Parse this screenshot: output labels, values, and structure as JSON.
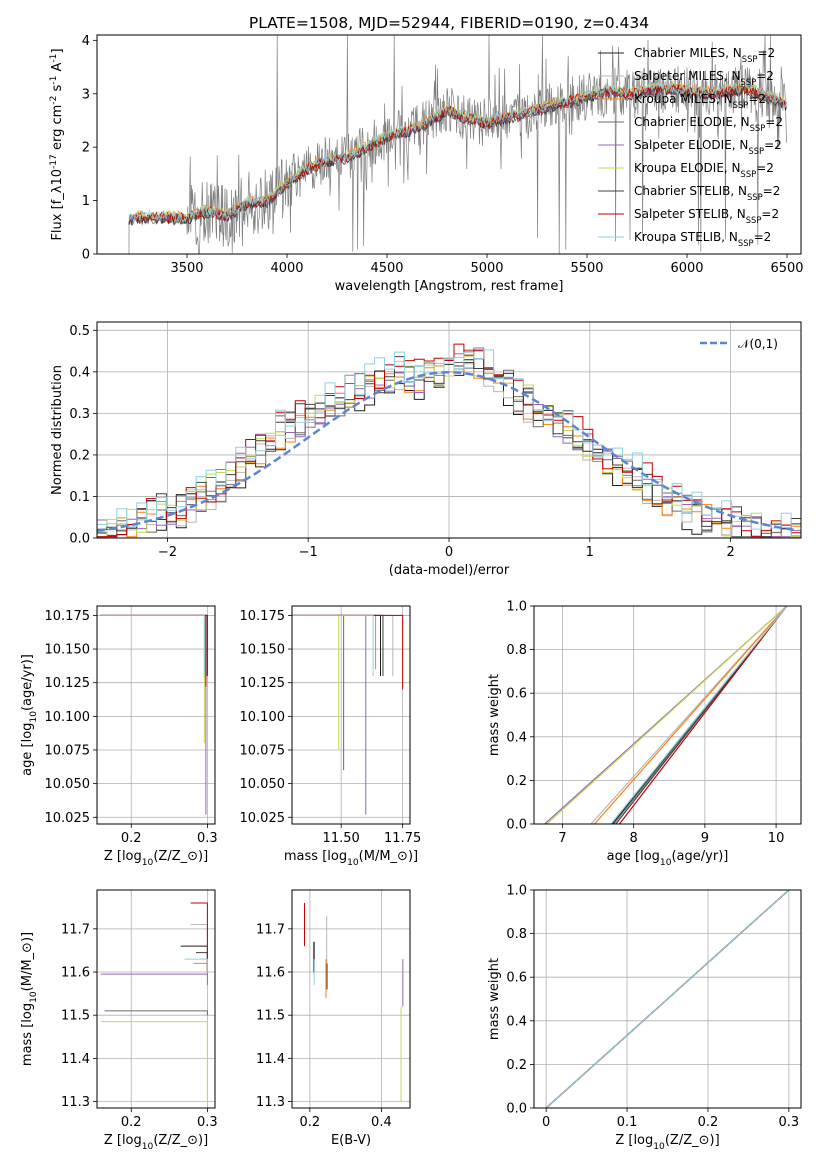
{
  "figure_title": "PLATE=1508, MJD=52944, FIBERID=0190, z=0.434",
  "colors": {
    "data": "#7f7f7f",
    "gauss": "#5b86d6",
    "grid": "#b0b0b0",
    "series": [
      "#1f1f1f",
      "#b7b7b7",
      "#ff7f0e",
      "#6b6b6b",
      "#9467bd",
      "#c5d84f",
      "#404040",
      "#c00000",
      "#8fd0df"
    ]
  },
  "models": [
    {
      "imf": "Chabrier",
      "lib": "MILES",
      "color": "#1f1f1f"
    },
    {
      "imf": "Salpeter",
      "lib": "MILES",
      "color": "#b7b7b7"
    },
    {
      "imf": "Kroupa",
      "lib": "MILES",
      "color": "#ff7f0e"
    },
    {
      "imf": "Chabrier",
      "lib": "ELODIE",
      "color": "#6b6b6b"
    },
    {
      "imf": "Salpeter",
      "lib": "ELODIE",
      "color": "#9467bd"
    },
    {
      "imf": "Kroupa",
      "lib": "ELODIE",
      "color": "#c5d84f"
    },
    {
      "imf": "Chabrier",
      "lib": "STELIB",
      "color": "#404040"
    },
    {
      "imf": "Salpeter",
      "lib": "STELIB",
      "color": "#c00000"
    },
    {
      "imf": "Kroupa",
      "lib": "STELIB",
      "color": "#8fd0df"
    }
  ],
  "chart_data": [
    {
      "id": "spectrum",
      "type": "line",
      "xlabel": "wavelength [Angstrom, rest frame]",
      "ylabel": "Flux [f$_\\lambda$10$^{-17}$ erg cm$^{-2}$ s$^{-1}$ A$^{-1}$]",
      "xlim": [
        3050,
        6570
      ],
      "ylim": [
        0,
        4.1
      ],
      "xticks": [
        3500,
        4000,
        4500,
        5000,
        5500,
        6000,
        6500
      ],
      "yticks": [
        0,
        1,
        2,
        3,
        4
      ],
      "grid": false,
      "legend_position": "top-right",
      "legend": [
        "Chabrier MILES, N$_{SSP}$=2",
        "Salpeter MILES, N$_{SSP}$=2",
        "Kroupa MILES, N$_{SSP}$=2",
        "Chabrier ELODIE, N$_{SSP}$=2",
        "Salpeter ELODIE, N$_{SSP}$=2",
        "Kroupa ELODIE, N$_{SSP}$=2",
        "Chabrier STELIB, N$_{SSP}$=2",
        "Salpeter STELIB, N$_{SSP}$=2",
        "Kroupa STELIB, N$_{SSP}$=2"
      ],
      "continuum": [
        [
          3210,
          0.65
        ],
        [
          3300,
          0.7
        ],
        [
          3400,
          0.68
        ],
        [
          3500,
          0.68
        ],
        [
          3600,
          0.8
        ],
        [
          3700,
          0.72
        ],
        [
          3800,
          0.95
        ],
        [
          3900,
          1.0
        ],
        [
          4000,
          1.3
        ],
        [
          4100,
          1.6
        ],
        [
          4200,
          1.75
        ],
        [
          4300,
          1.8
        ],
        [
          4400,
          2.0
        ],
        [
          4500,
          2.2
        ],
        [
          4600,
          2.3
        ],
        [
          4700,
          2.45
        ],
        [
          4800,
          2.7
        ],
        [
          4900,
          2.55
        ],
        [
          5000,
          2.45
        ],
        [
          5100,
          2.55
        ],
        [
          5200,
          2.65
        ],
        [
          5300,
          2.75
        ],
        [
          5400,
          2.85
        ],
        [
          5500,
          2.95
        ],
        [
          5600,
          3.05
        ],
        [
          5700,
          3.0
        ],
        [
          5800,
          3.05
        ],
        [
          5900,
          3.1
        ],
        [
          6000,
          3.05
        ],
        [
          6100,
          3.0
        ],
        [
          6200,
          3.05
        ],
        [
          6300,
          3.1
        ],
        [
          6400,
          2.95
        ],
        [
          6500,
          2.8
        ]
      ],
      "xrange": [
        3210,
        6500
      ]
    },
    {
      "id": "residuals",
      "type": "histogram",
      "xlabel": "(data-model)/error",
      "ylabel": "Normed distribution",
      "xlim": [
        -2.5,
        2.5
      ],
      "ylim": [
        0,
        0.52
      ],
      "xticks": [
        -2,
        -1,
        0,
        1,
        2
      ],
      "yticks": [
        0.0,
        0.1,
        0.2,
        0.3,
        0.4,
        0.5
      ],
      "grid": true,
      "legend": [
        "$\\mathcal{N}(0,1)$"
      ],
      "bin_width": 0.1,
      "base_hist": [
        0.01,
        0.01,
        0.02,
        0.03,
        0.04,
        0.05,
        0.06,
        0.06,
        0.07,
        0.09,
        0.1,
        0.11,
        0.13,
        0.15,
        0.17,
        0.19,
        0.21,
        0.24,
        0.26,
        0.27,
        0.28,
        0.3,
        0.31,
        0.32,
        0.33,
        0.34,
        0.36,
        0.37,
        0.38,
        0.39,
        0.4,
        0.39,
        0.38,
        0.39,
        0.4,
        0.41,
        0.42,
        0.44,
        0.42,
        0.4,
        0.38,
        0.37,
        0.34,
        0.33,
        0.31,
        0.3,
        0.28,
        0.26,
        0.25,
        0.23,
        0.21,
        0.19,
        0.17,
        0.16,
        0.15,
        0.13,
        0.11,
        0.09,
        0.08,
        0.07,
        0.06,
        0.05,
        0.05,
        0.04,
        0.04,
        0.03,
        0.02,
        0.02,
        0.01,
        0.01,
        0.01
      ]
    },
    {
      "id": "age-vs-Z",
      "type": "line",
      "xlabel": "Z [log$_{10}$($Z/Z_\\odot$)]",
      "ylabel": "age  [log$_{10}$($age/yr$)]",
      "xlim": [
        0.155,
        0.31
      ],
      "ylim": [
        10.02,
        10.182
      ],
      "xticks": [
        0.2,
        0.3
      ],
      "yticks": [
        10.025,
        10.05,
        10.075,
        10.1,
        10.125,
        10.15,
        10.175
      ],
      "ytick_labels": [
        "10.025",
        "10.050",
        "10.075",
        "10.100",
        "10.125",
        "10.150",
        "10.175"
      ],
      "grid": true,
      "series": [
        {
          "top": 10.175,
          "x_start": 0.16,
          "x_end": 0.3,
          "drop_to": 10.13,
          "color": "#1f1f1f"
        },
        {
          "top": 10.175,
          "x_start": 0.16,
          "x_end": 0.3,
          "drop_to": 10.13,
          "color": "#b7b7b7"
        },
        {
          "top": 10.175,
          "x_start": 0.16,
          "x_end": 0.3,
          "drop_to": 10.128,
          "color": "#ff7f0e"
        },
        {
          "top": 10.175,
          "x_start": 0.16,
          "x_end": 0.3,
          "drop_to": 10.13,
          "color": "#6b6b6b"
        },
        {
          "top": 10.175,
          "x_start": 0.16,
          "x_end": 0.3,
          "drop_to": 10.027,
          "color": "#9467bd"
        },
        {
          "top": 10.175,
          "x_start": 0.16,
          "x_end": 0.3,
          "drop_to": 10.08,
          "color": "#c5d84f"
        },
        {
          "top": 10.175,
          "x_start": 0.16,
          "x_end": 0.3,
          "drop_to": 10.13,
          "color": "#404040"
        },
        {
          "top": 10.175,
          "x_start": 0.16,
          "x_end": 0.3,
          "drop_to": 10.122,
          "color": "#c00000"
        },
        {
          "top": 10.175,
          "x_start": 0.16,
          "x_end": 0.3,
          "drop_to": 10.13,
          "color": "#8fd0df"
        }
      ]
    },
    {
      "id": "age-vs-mass",
      "type": "line",
      "xlabel": "mass [log$_{10}$($M/M_\\odot$)]",
      "ylabel": "",
      "xlim": [
        11.3,
        11.78
      ],
      "ylim": [
        10.02,
        10.182
      ],
      "xticks": [
        11.5,
        11.75
      ],
      "xtick_labels": [
        "11.50",
        "11.75"
      ],
      "yticks": [
        10.025,
        10.05,
        10.075,
        10.1,
        10.125,
        10.15,
        10.175
      ],
      "ytick_labels": [
        "10.025",
        "10.050",
        "10.075",
        "10.100",
        "10.125",
        "10.150",
        "10.175"
      ],
      "grid": true,
      "series": [
        {
          "x": 11.66,
          "drop_to": 10.13,
          "color": "#1f1f1f"
        },
        {
          "x": 11.71,
          "drop_to": 10.13,
          "color": "#b7b7b7"
        },
        {
          "x": 11.64,
          "drop_to": 10.135,
          "color": "#ff7f0e"
        },
        {
          "x": 11.51,
          "drop_to": 10.06,
          "color": "#6b6b6b"
        },
        {
          "x": 11.6,
          "drop_to": 10.027,
          "color": "#9467bd"
        },
        {
          "x": 11.49,
          "drop_to": 10.075,
          "color": "#c5d84f"
        },
        {
          "x": 11.67,
          "drop_to": 10.13,
          "color": "#404040"
        },
        {
          "x": 11.75,
          "drop_to": 10.12,
          "color": "#c00000"
        },
        {
          "x": 11.63,
          "drop_to": 10.13,
          "color": "#8fd0df"
        }
      ]
    },
    {
      "id": "mass-weight-vs-age",
      "type": "line",
      "xlabel": "age  [log$_{10}$($age/yr$)]",
      "ylabel": "mass weight",
      "xlim": [
        6.6,
        10.35
      ],
      "ylim": [
        0,
        1
      ],
      "xticks": [
        7,
        8,
        9,
        10
      ],
      "yticks": [
        0.0,
        0.2,
        0.4,
        0.6,
        0.8,
        1.0
      ],
      "grid": true,
      "series": [
        {
          "x0": 7.7,
          "x1": 10.15,
          "color": "#1f1f1f"
        },
        {
          "x0": 7.4,
          "x1": 10.15,
          "color": "#b7b7b7"
        },
        {
          "x0": 7.45,
          "x1": 10.15,
          "color": "#ff7f0e"
        },
        {
          "x0": 7.72,
          "x1": 10.15,
          "color": "#6b6b6b"
        },
        {
          "x0": 6.75,
          "x1": 10.15,
          "color": "#9467bd"
        },
        {
          "x0": 6.78,
          "x1": 10.15,
          "color": "#c5d84f"
        },
        {
          "x0": 7.75,
          "x1": 10.15,
          "color": "#404040"
        },
        {
          "x0": 7.8,
          "x1": 10.15,
          "color": "#c00000"
        },
        {
          "x0": 7.68,
          "x1": 10.15,
          "color": "#8fd0df"
        }
      ]
    },
    {
      "id": "mass-vs-Z",
      "type": "line",
      "xlabel": "Z [log$_{10}$($Z/Z_\\odot$)]",
      "ylabel": "mass [log$_{10}$($M/M_\\odot$)]",
      "xlim": [
        0.155,
        0.31
      ],
      "ylim": [
        11.285,
        11.79
      ],
      "xticks": [
        0.2,
        0.3
      ],
      "yticks": [
        11.3,
        11.4,
        11.5,
        11.6,
        11.7
      ],
      "grid": true,
      "series": [
        {
          "y": 11.66,
          "x_start": 0.265,
          "drop_to": 11.6,
          "color": "#1f1f1f"
        },
        {
          "y": 11.71,
          "x_start": 0.278,
          "drop_to": 11.6,
          "color": "#b7b7b7"
        },
        {
          "y": 11.62,
          "x_start": 0.282,
          "drop_to": 11.59,
          "color": "#ff7f0e"
        },
        {
          "y": 11.51,
          "x_start": 0.165,
          "drop_to": 11.5,
          "color": "#6b6b6b"
        },
        {
          "y": 11.595,
          "x_start": 0.16,
          "drop_to": 11.57,
          "color": "#9467bd"
        },
        {
          "y": 11.485,
          "x_start": 0.16,
          "drop_to": 11.3,
          "color": "#c5d84f"
        },
        {
          "y": 11.645,
          "x_start": 0.285,
          "drop_to": 11.6,
          "color": "#404040"
        },
        {
          "y": 11.76,
          "x_start": 0.278,
          "drop_to": 11.6,
          "color": "#c00000"
        },
        {
          "y": 11.63,
          "x_start": 0.27,
          "drop_to": 11.6,
          "color": "#8fd0df"
        }
      ]
    },
    {
      "id": "mass-vs-EBV",
      "type": "line",
      "xlabel": "E(B-V)",
      "ylabel": "",
      "xlim": [
        0.15,
        0.48
      ],
      "ylim": [
        11.285,
        11.79
      ],
      "xticks": [
        0.2,
        0.4
      ],
      "yticks": [
        11.3,
        11.4,
        11.5,
        11.6,
        11.7
      ],
      "grid": true,
      "series": [
        {
          "x": 0.212,
          "y0": 11.67,
          "y1": 11.6,
          "color": "#1f1f1f"
        },
        {
          "x": 0.247,
          "y0": 11.73,
          "y1": 11.62,
          "color": "#b7b7b7"
        },
        {
          "x": 0.245,
          "y0": 11.63,
          "y1": 11.54,
          "color": "#ff7f0e"
        },
        {
          "x": 0.21,
          "y0": 11.67,
          "y1": 11.6,
          "color": "#6b6b6b"
        },
        {
          "x": 0.46,
          "y0": 11.63,
          "y1": 11.52,
          "color": "#9467bd"
        },
        {
          "x": 0.455,
          "y0": 11.52,
          "y1": 11.3,
          "color": "#c5d84f"
        },
        {
          "x": 0.248,
          "y0": 11.62,
          "y1": 11.56,
          "color": "#404040"
        },
        {
          "x": 0.185,
          "y0": 11.76,
          "y1": 11.66,
          "color": "#c00000"
        },
        {
          "x": 0.212,
          "y0": 11.63,
          "y1": 11.57,
          "color": "#8fd0df"
        }
      ]
    },
    {
      "id": "mass-weight-vs-Z",
      "type": "line",
      "xlabel": "Z [log$_{10}$($Z/Z_\\odot$)]",
      "ylabel": "mass weight",
      "xlim": [
        -0.015,
        0.315
      ],
      "ylim": [
        0,
        1
      ],
      "xticks": [
        0.0,
        0.1,
        0.2,
        0.3
      ],
      "yticks": [
        0.0,
        0.2,
        0.4,
        0.6,
        0.8,
        1.0
      ],
      "grid": true,
      "series": [
        {
          "x0": 0.0,
          "x1": 0.3,
          "color": "#1f1f1f"
        },
        {
          "x0": 0.0,
          "x1": 0.3,
          "color": "#b7b7b7"
        },
        {
          "x0": 0.0,
          "x1": 0.3,
          "color": "#ff7f0e"
        },
        {
          "x0": 0.0,
          "x1": 0.3,
          "color": "#6b6b6b"
        },
        {
          "x0": 0.0,
          "x1": 0.3,
          "color": "#9467bd"
        },
        {
          "x0": 0.0,
          "x1": 0.3,
          "color": "#c5d84f"
        },
        {
          "x0": 0.0,
          "x1": 0.3,
          "color": "#404040"
        },
        {
          "x0": 0.0,
          "x1": 0.3,
          "color": "#c00000"
        },
        {
          "x0": 0.0,
          "x1": 0.3,
          "color": "#8fd0df"
        }
      ]
    }
  ]
}
